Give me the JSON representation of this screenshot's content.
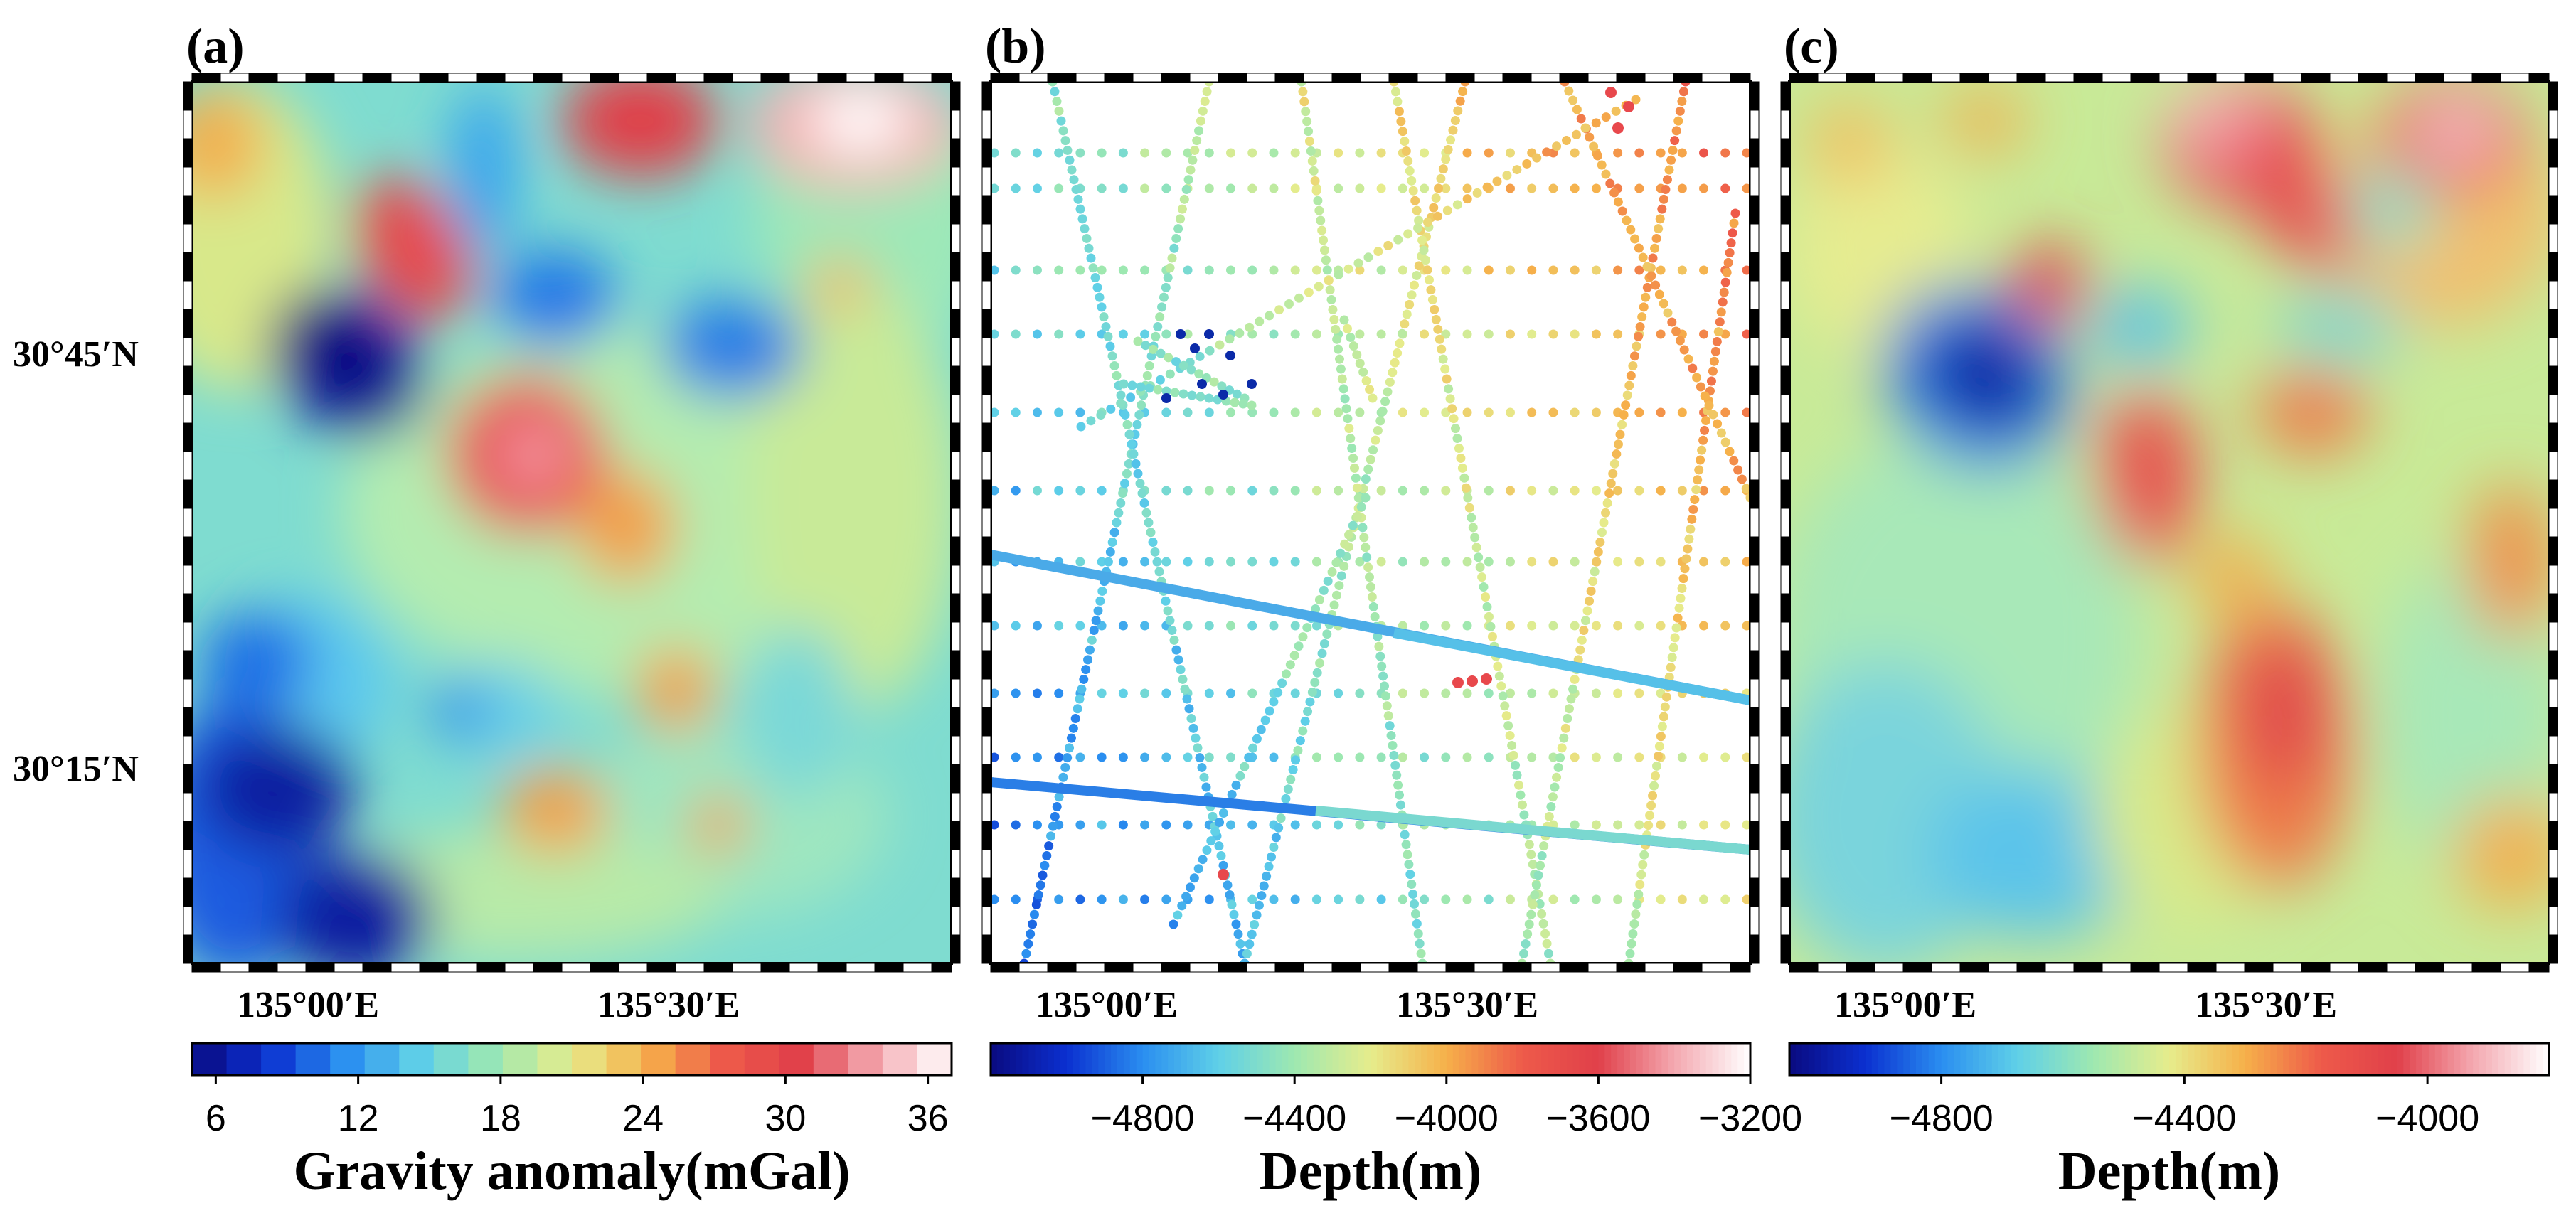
{
  "figure": {
    "panels": [
      {
        "id": "a",
        "label": "(a)",
        "kind": "gravity-field",
        "lat_labels": [
          "30°45′N",
          "30°15′N"
        ],
        "lon_labels": [
          "135°00′E",
          "135°30′E"
        ],
        "colorbar": {
          "title": "Gravity anomaly(mGal)",
          "ticks": [
            "6",
            "12",
            "18",
            "24",
            "30",
            "36"
          ],
          "range": [
            5,
            37
          ]
        }
      },
      {
        "id": "b",
        "label": "(b)",
        "kind": "ship-track-depth",
        "lon_labels": [
          "135°00′E",
          "135°30′E"
        ],
        "colorbar": {
          "title": "Depth(m)",
          "ticks": [
            "−4800",
            "−4400",
            "−4000",
            "−3600",
            "−3200"
          ],
          "range": [
            -5200,
            -3200
          ]
        }
      },
      {
        "id": "c",
        "label": "(c)",
        "kind": "predicted-depth",
        "lon_labels": [
          "135°00′E",
          "135°30′E"
        ],
        "colorbar": {
          "title": "Depth(m)",
          "ticks": [
            "−4800",
            "−4400",
            "−4000"
          ],
          "range": [
            -5050,
            -3800
          ]
        }
      }
    ]
  },
  "colormaps": {
    "jet_white": [
      "#0a0a80",
      "#0b30d0",
      "#2a8ef0",
      "#5fd0e8",
      "#9ee8b0",
      "#e6ec8c",
      "#f6b04a",
      "#ee5a4a",
      "#e0404a",
      "#f4a8b0",
      "#ffffff"
    ]
  }
}
